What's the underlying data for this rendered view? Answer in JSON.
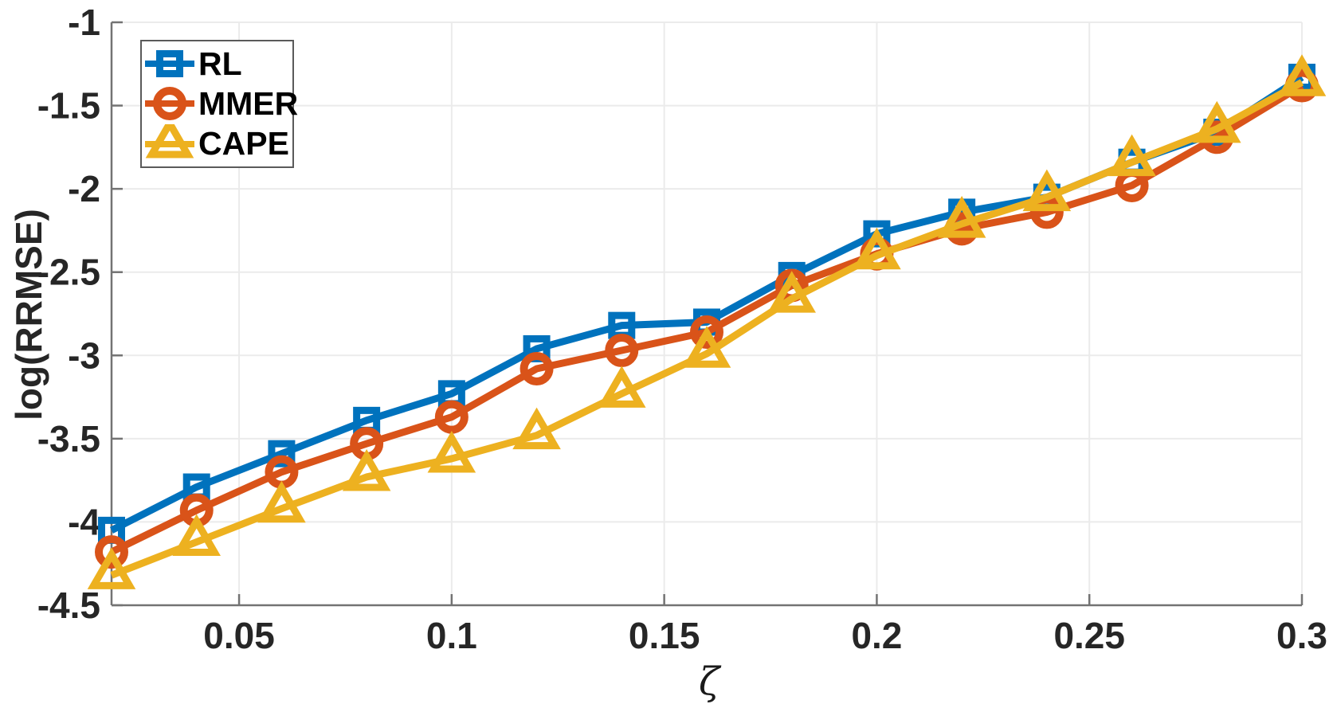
{
  "figure": {
    "background": "#ffffff",
    "xlabel": "ζ",
    "ylabel": "log(RRMSE)"
  },
  "legend": {
    "position": "top-left",
    "items": [
      {
        "label": "RL"
      },
      {
        "label": "MMER"
      },
      {
        "label": "CAPE"
      }
    ]
  },
  "chart_data": {
    "type": "line",
    "title": "",
    "xlabel": "ζ",
    "ylabel": "log(RRMSE)",
    "x": [
      0.02,
      0.04,
      0.06,
      0.08,
      0.1,
      0.12,
      0.14,
      0.16,
      0.18,
      0.2,
      0.22,
      0.24,
      0.26,
      0.28,
      0.3
    ],
    "series": [
      {
        "name": "RL",
        "color": "#0072BD",
        "marker": "square",
        "values": [
          -4.05,
          -3.79,
          -3.59,
          -3.39,
          -3.23,
          -2.96,
          -2.82,
          -2.8,
          -2.52,
          -2.27,
          -2.14,
          -2.05,
          -1.84,
          -1.66,
          -1.33
        ]
      },
      {
        "name": "MMER",
        "color": "#D95319",
        "marker": "circle",
        "values": [
          -4.18,
          -3.93,
          -3.7,
          -3.53,
          -3.37,
          -3.08,
          -2.97,
          -2.86,
          -2.58,
          -2.39,
          -2.24,
          -2.14,
          -1.98,
          -1.69,
          -1.38
        ]
      },
      {
        "name": "CAPE",
        "color": "#EDB120",
        "marker": "triangle-up",
        "values": [
          -4.32,
          -4.12,
          -3.92,
          -3.73,
          -3.62,
          -3.48,
          -3.23,
          -2.99,
          -2.66,
          -2.4,
          -2.21,
          -2.05,
          -1.84,
          -1.64,
          -1.36
        ]
      }
    ],
    "xlim": [
      0.02,
      0.3
    ],
    "ylim": [
      -4.5,
      -1
    ],
    "xticks": [
      0.05,
      0.1,
      0.15,
      0.2,
      0.25,
      0.3
    ],
    "xtick_labels": [
      "0.05",
      "0.1",
      "0.15",
      "0.2",
      "0.25",
      "0.3"
    ],
    "yticks": [
      -1,
      -1.5,
      -2,
      -2.5,
      -3,
      -3.5,
      -4,
      -4.5
    ],
    "ytick_labels": [
      "-1",
      "-1.5",
      "-2",
      "-2.5",
      "-3",
      "-3.5",
      "-4",
      "-4.5"
    ],
    "grid": true,
    "legend_position": "top-left",
    "axis_color": "#737373",
    "grid_color": "#ebebeb",
    "tick_label_color": "#262626"
  }
}
